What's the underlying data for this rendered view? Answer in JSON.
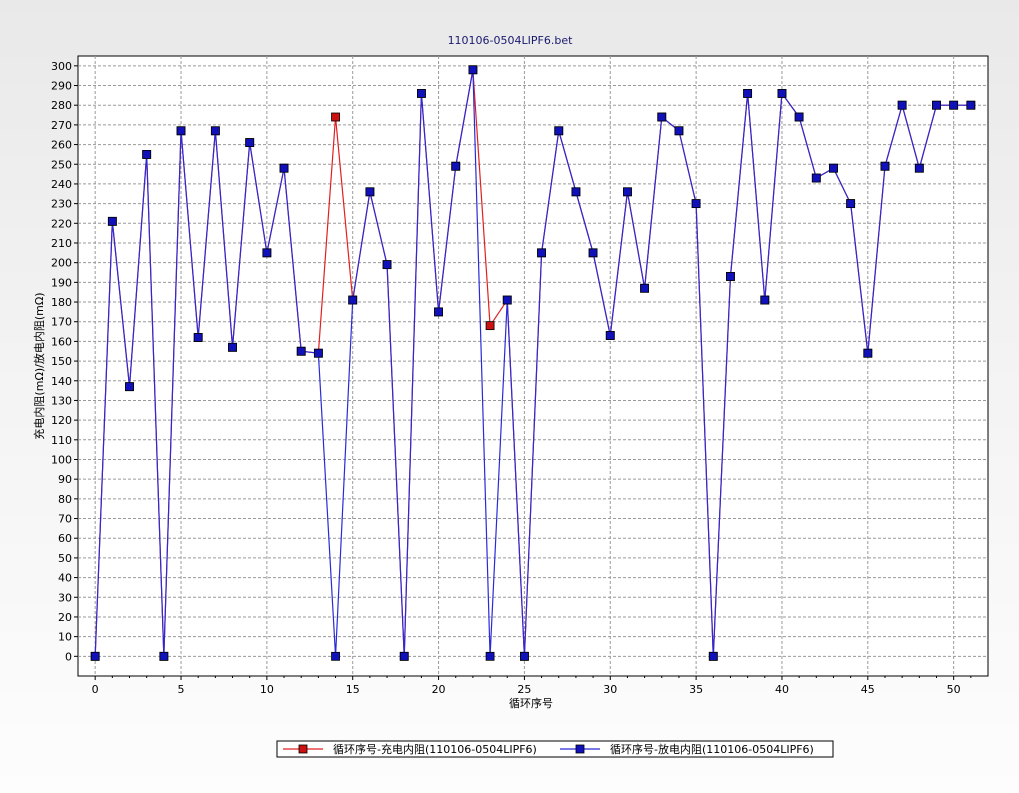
{
  "chart_data": {
    "type": "line",
    "title": "110106-0504LIPF6.bet",
    "xlabel": "循环序号",
    "ylabel": "充电内阻(mΩ)/放电内阻(mΩ)",
    "xlim": [
      -1,
      52
    ],
    "ylim": [
      -10,
      305
    ],
    "x_ticks": [
      0,
      5,
      10,
      15,
      20,
      25,
      30,
      35,
      40,
      45,
      50
    ],
    "y_ticks": [
      0,
      10,
      20,
      30,
      40,
      50,
      60,
      70,
      80,
      90,
      100,
      110,
      120,
      130,
      140,
      150,
      160,
      170,
      180,
      190,
      200,
      210,
      220,
      230,
      240,
      250,
      260,
      270,
      280,
      290,
      300
    ],
    "grid": true,
    "legend_position": "bottom",
    "series": [
      {
        "name": "循环序号-充电内阻(110106-0504LIPF6)",
        "color": "#e02020",
        "marker_color": "#cc1111",
        "x": [
          0,
          1,
          2,
          3,
          4,
          5,
          6,
          7,
          8,
          9,
          10,
          11,
          12,
          13,
          14,
          15,
          16,
          17,
          18,
          19,
          20,
          21,
          22,
          23,
          24,
          25,
          26,
          27,
          28,
          29,
          30,
          31,
          32,
          33,
          34,
          35,
          36,
          37,
          38,
          39,
          40,
          41,
          42,
          43,
          44,
          45,
          46,
          47,
          48,
          49,
          50,
          51
        ],
        "values": [
          0,
          221,
          137,
          255,
          0,
          267,
          162,
          267,
          157,
          261,
          205,
          248,
          155,
          154,
          274,
          181,
          236,
          199,
          0,
          286,
          175,
          249,
          298,
          168,
          181,
          0,
          205,
          267,
          236,
          205,
          163,
          236,
          187,
          274,
          267,
          230,
          0,
          193,
          286,
          181,
          286,
          274,
          243,
          248,
          230,
          154,
          249,
          280,
          248,
          280,
          280,
          280
        ]
      },
      {
        "name": "循环序号-放电内阻(110106-0504LIPF6)",
        "color": "#2a2ad8",
        "marker_color": "#1111bb",
        "x": [
          0,
          1,
          2,
          3,
          4,
          5,
          6,
          7,
          8,
          9,
          10,
          11,
          12,
          13,
          14,
          15,
          16,
          17,
          18,
          19,
          20,
          21,
          22,
          23,
          24,
          25,
          26,
          27,
          28,
          29,
          30,
          31,
          32,
          33,
          34,
          35,
          36,
          37,
          38,
          39,
          40,
          41,
          42,
          43,
          44,
          45,
          46,
          47,
          48,
          49,
          50,
          51
        ],
        "values": [
          0,
          221,
          137,
          255,
          0,
          267,
          162,
          267,
          157,
          261,
          205,
          248,
          155,
          154,
          0,
          181,
          236,
          199,
          0,
          286,
          175,
          249,
          298,
          0,
          181,
          0,
          205,
          267,
          236,
          205,
          163,
          236,
          187,
          274,
          267,
          230,
          0,
          193,
          286,
          181,
          286,
          274,
          243,
          248,
          230,
          154,
          249,
          280,
          248,
          280,
          280,
          280
        ]
      }
    ]
  }
}
